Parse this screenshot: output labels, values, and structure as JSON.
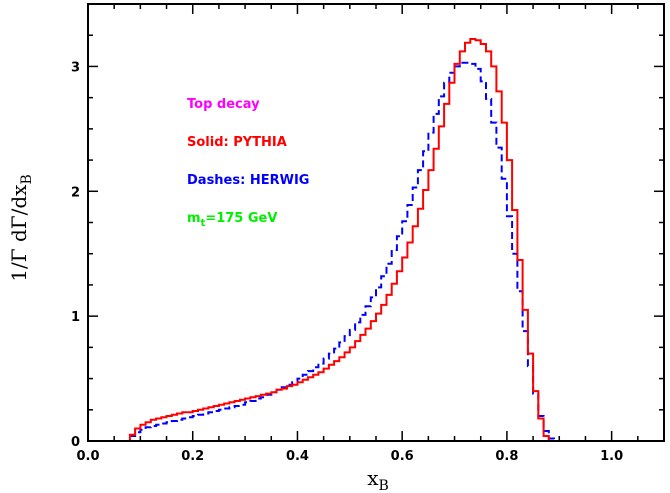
{
  "chart_data": {
    "type": "line",
    "title": "",
    "xlabel": "x",
    "xlabel_sub": "B",
    "ylabel": "1/Γ dΓ/dx",
    "ylabel_sub": "B",
    "xlim": [
      0.0,
      1.1
    ],
    "ylim": [
      0.0,
      3.5
    ],
    "xticks": [
      0.0,
      0.2,
      0.4,
      0.6,
      0.8,
      1.0
    ],
    "xtick_labels": [
      "0.0",
      "0.2",
      "0.4",
      "0.6",
      "0.8",
      "1.0"
    ],
    "yticks": [
      0,
      1,
      2,
      3
    ],
    "ytick_labels": [
      "0",
      "1",
      "2",
      "3"
    ],
    "grid": false,
    "bin_width": 0.01,
    "annotations": [
      {
        "text": "Top decay",
        "color": "#ff00ff"
      },
      {
        "text": "Solid: PYTHIA",
        "color": "#ff0000"
      },
      {
        "text": "Dashes: HERWIG",
        "color": "#0000ff"
      },
      {
        "text": "m",
        "sub": "t",
        "suffix": "=175 GeV",
        "color": "#00ee00"
      }
    ],
    "series": [
      {
        "name": "PYTHIA",
        "style": "solid",
        "color": "#ff0000",
        "points": [
          [
            0.07,
            0.0
          ],
          [
            0.08,
            0.05
          ],
          [
            0.09,
            0.1
          ],
          [
            0.1,
            0.13
          ],
          [
            0.11,
            0.15
          ],
          [
            0.12,
            0.17
          ],
          [
            0.13,
            0.18
          ],
          [
            0.14,
            0.19
          ],
          [
            0.15,
            0.2
          ],
          [
            0.16,
            0.21
          ],
          [
            0.17,
            0.22
          ],
          [
            0.18,
            0.23
          ],
          [
            0.19,
            0.23
          ],
          [
            0.2,
            0.24
          ],
          [
            0.21,
            0.25
          ],
          [
            0.22,
            0.26
          ],
          [
            0.23,
            0.27
          ],
          [
            0.24,
            0.28
          ],
          [
            0.25,
            0.29
          ],
          [
            0.26,
            0.3
          ],
          [
            0.27,
            0.31
          ],
          [
            0.28,
            0.32
          ],
          [
            0.29,
            0.33
          ],
          [
            0.3,
            0.34
          ],
          [
            0.31,
            0.35
          ],
          [
            0.32,
            0.36
          ],
          [
            0.33,
            0.37
          ],
          [
            0.34,
            0.38
          ],
          [
            0.35,
            0.39
          ],
          [
            0.36,
            0.41
          ],
          [
            0.37,
            0.42
          ],
          [
            0.38,
            0.44
          ],
          [
            0.39,
            0.45
          ],
          [
            0.4,
            0.47
          ],
          [
            0.41,
            0.49
          ],
          [
            0.42,
            0.51
          ],
          [
            0.43,
            0.53
          ],
          [
            0.44,
            0.55
          ],
          [
            0.45,
            0.58
          ],
          [
            0.46,
            0.61
          ],
          [
            0.47,
            0.64
          ],
          [
            0.48,
            0.67
          ],
          [
            0.49,
            0.71
          ],
          [
            0.5,
            0.75
          ],
          [
            0.51,
            0.8
          ],
          [
            0.52,
            0.85
          ],
          [
            0.53,
            0.9
          ],
          [
            0.54,
            0.96
          ],
          [
            0.55,
            1.02
          ],
          [
            0.56,
            1.09
          ],
          [
            0.57,
            1.17
          ],
          [
            0.58,
            1.26
          ],
          [
            0.59,
            1.36
          ],
          [
            0.6,
            1.47
          ],
          [
            0.61,
            1.59
          ],
          [
            0.62,
            1.72
          ],
          [
            0.63,
            1.86
          ],
          [
            0.64,
            2.01
          ],
          [
            0.65,
            2.17
          ],
          [
            0.66,
            2.34
          ],
          [
            0.67,
            2.52
          ],
          [
            0.68,
            2.7
          ],
          [
            0.69,
            2.87
          ],
          [
            0.7,
            3.02
          ],
          [
            0.71,
            3.12
          ],
          [
            0.72,
            3.19
          ],
          [
            0.73,
            3.22
          ],
          [
            0.74,
            3.21
          ],
          [
            0.75,
            3.18
          ],
          [
            0.76,
            3.12
          ],
          [
            0.77,
            3.0
          ],
          [
            0.78,
            2.8
          ],
          [
            0.79,
            2.55
          ],
          [
            0.8,
            2.25
          ],
          [
            0.81,
            1.85
          ],
          [
            0.82,
            1.45
          ],
          [
            0.83,
            1.05
          ],
          [
            0.84,
            0.7
          ],
          [
            0.85,
            0.4
          ],
          [
            0.86,
            0.18
          ],
          [
            0.87,
            0.04
          ],
          [
            0.88,
            0.0
          ]
        ]
      },
      {
        "name": "HERWIG",
        "style": "dashed",
        "color": "#0000ff",
        "points": [
          [
            0.07,
            0.0
          ],
          [
            0.08,
            0.04
          ],
          [
            0.09,
            0.07
          ],
          [
            0.1,
            0.09
          ],
          [
            0.11,
            0.11
          ],
          [
            0.12,
            0.12
          ],
          [
            0.13,
            0.13
          ],
          [
            0.14,
            0.14
          ],
          [
            0.15,
            0.15
          ],
          [
            0.16,
            0.16
          ],
          [
            0.17,
            0.17
          ],
          [
            0.18,
            0.18
          ],
          [
            0.19,
            0.19
          ],
          [
            0.2,
            0.2
          ],
          [
            0.21,
            0.21
          ],
          [
            0.22,
            0.22
          ],
          [
            0.23,
            0.23
          ],
          [
            0.24,
            0.24
          ],
          [
            0.25,
            0.25
          ],
          [
            0.26,
            0.26
          ],
          [
            0.27,
            0.27
          ],
          [
            0.28,
            0.28
          ],
          [
            0.29,
            0.29
          ],
          [
            0.3,
            0.31
          ],
          [
            0.31,
            0.32
          ],
          [
            0.32,
            0.34
          ],
          [
            0.33,
            0.35
          ],
          [
            0.34,
            0.37
          ],
          [
            0.35,
            0.39
          ],
          [
            0.36,
            0.41
          ],
          [
            0.37,
            0.43
          ],
          [
            0.38,
            0.45
          ],
          [
            0.39,
            0.47
          ],
          [
            0.4,
            0.5
          ],
          [
            0.41,
            0.53
          ],
          [
            0.42,
            0.56
          ],
          [
            0.43,
            0.59
          ],
          [
            0.44,
            0.62
          ],
          [
            0.45,
            0.66
          ],
          [
            0.46,
            0.7
          ],
          [
            0.47,
            0.74
          ],
          [
            0.48,
            0.79
          ],
          [
            0.49,
            0.84
          ],
          [
            0.5,
            0.89
          ],
          [
            0.51,
            0.95
          ],
          [
            0.52,
            1.01
          ],
          [
            0.53,
            1.08
          ],
          [
            0.54,
            1.15
          ],
          [
            0.55,
            1.23
          ],
          [
            0.56,
            1.32
          ],
          [
            0.57,
            1.42
          ],
          [
            0.58,
            1.53
          ],
          [
            0.59,
            1.64
          ],
          [
            0.6,
            1.76
          ],
          [
            0.61,
            1.89
          ],
          [
            0.62,
            2.03
          ],
          [
            0.63,
            2.17
          ],
          [
            0.64,
            2.32
          ],
          [
            0.65,
            2.47
          ],
          [
            0.66,
            2.62
          ],
          [
            0.67,
            2.76
          ],
          [
            0.68,
            2.87
          ],
          [
            0.69,
            2.95
          ],
          [
            0.7,
            3.0
          ],
          [
            0.71,
            3.03
          ],
          [
            0.72,
            3.03
          ],
          [
            0.73,
            3.02
          ],
          [
            0.74,
            2.98
          ],
          [
            0.75,
            2.88
          ],
          [
            0.76,
            2.74
          ],
          [
            0.77,
            2.55
          ],
          [
            0.78,
            2.35
          ],
          [
            0.79,
            2.1
          ],
          [
            0.8,
            1.8
          ],
          [
            0.81,
            1.5
          ],
          [
            0.82,
            1.2
          ],
          [
            0.83,
            0.88
          ],
          [
            0.84,
            0.6
          ],
          [
            0.85,
            0.38
          ],
          [
            0.86,
            0.2
          ],
          [
            0.87,
            0.08
          ],
          [
            0.88,
            0.02
          ],
          [
            0.89,
            0.0
          ]
        ]
      }
    ]
  }
}
